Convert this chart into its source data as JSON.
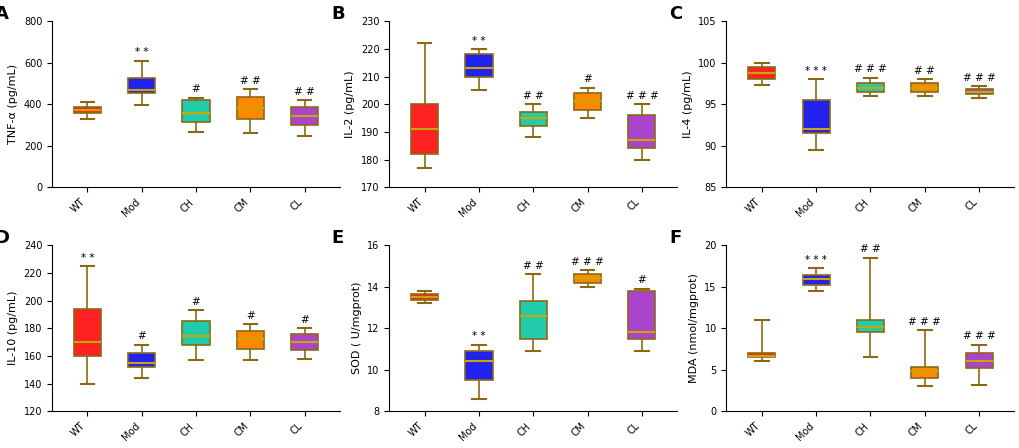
{
  "panels": [
    {
      "label": "A",
      "ylabel": "TNF-α (pg/mL)",
      "ylim": [
        0,
        800
      ],
      "yticks": [
        0,
        200,
        400,
        600,
        800
      ],
      "groups": [
        "WT",
        "Mod",
        "CH",
        "CM",
        "CL"
      ],
      "colors": [
        "#FF2222",
        "#2222EE",
        "#22CCAA",
        "#FF8800",
        "#AA44CC"
      ],
      "boxes": [
        {
          "q1": 358,
          "med": 373,
          "q3": 388,
          "whislo": 330,
          "whishi": 410
        },
        {
          "q1": 453,
          "med": 468,
          "q3": 528,
          "whislo": 398,
          "whishi": 610
        },
        {
          "q1": 312,
          "med": 358,
          "q3": 422,
          "whislo": 268,
          "whishi": 432
        },
        {
          "q1": 328,
          "med": 382,
          "q3": 433,
          "whislo": 262,
          "whishi": 472
        },
        {
          "q1": 298,
          "med": 343,
          "q3": 388,
          "whislo": 248,
          "whishi": 418
        }
      ],
      "annotations": [
        "",
        "* *",
        "#",
        "# #",
        "# #"
      ]
    },
    {
      "label": "B",
      "ylabel": "IL-2 (pg/mL)",
      "ylim": [
        170,
        230
      ],
      "yticks": [
        170,
        180,
        190,
        200,
        210,
        220,
        230
      ],
      "groups": [
        "WT",
        "Mod",
        "CH",
        "CM",
        "CL"
      ],
      "colors": [
        "#FF2222",
        "#2222EE",
        "#22CCAA",
        "#FF8800",
        "#AA44CC"
      ],
      "boxes": [
        {
          "q1": 182,
          "med": 191,
          "q3": 200,
          "whislo": 177,
          "whishi": 222
        },
        {
          "q1": 210,
          "med": 213,
          "q3": 218,
          "whislo": 205,
          "whishi": 220
        },
        {
          "q1": 192,
          "med": 195,
          "q3": 197,
          "whislo": 188,
          "whishi": 200
        },
        {
          "q1": 198,
          "med": 201,
          "q3": 204,
          "whislo": 195,
          "whishi": 206
        },
        {
          "q1": 184,
          "med": 187,
          "q3": 196,
          "whislo": 180,
          "whishi": 200
        }
      ],
      "annotations": [
        "",
        "* *",
        "# #",
        "#",
        "# # #"
      ]
    },
    {
      "label": "C",
      "ylabel": "IL-4 (pg/mL)",
      "ylim": [
        85,
        105
      ],
      "yticks": [
        85,
        90,
        95,
        100,
        105
      ],
      "groups": [
        "WT",
        "Mod",
        "CH",
        "CM",
        "CL"
      ],
      "colors": [
        "#FF2222",
        "#2222EE",
        "#22CCAA",
        "#FF8800",
        "#AA44CC"
      ],
      "boxes": [
        {
          "q1": 98.0,
          "med": 98.8,
          "q3": 99.5,
          "whislo": 97.3,
          "whishi": 100.0
        },
        {
          "q1": 91.5,
          "med": 92.0,
          "q3": 95.5,
          "whislo": 89.5,
          "whishi": 98.0
        },
        {
          "q1": 96.5,
          "med": 97.0,
          "q3": 97.5,
          "whislo": 96.0,
          "whishi": 98.2
        },
        {
          "q1": 96.5,
          "med": 97.0,
          "q3": 97.5,
          "whislo": 96.0,
          "whishi": 98.0
        },
        {
          "q1": 96.2,
          "med": 96.5,
          "q3": 96.8,
          "whislo": 95.8,
          "whishi": 97.2
        }
      ],
      "annotations": [
        "",
        "* * *",
        "# # #",
        "# #",
        "# # #"
      ]
    },
    {
      "label": "D",
      "ylabel": "IL-10 (pg/mL)",
      "ylim": [
        120,
        240
      ],
      "yticks": [
        120,
        140,
        160,
        180,
        200,
        220,
        240
      ],
      "groups": [
        "WT",
        "Mod",
        "CH",
        "CM",
        "CL"
      ],
      "colors": [
        "#FF2222",
        "#2222EE",
        "#22CCAA",
        "#FF8800",
        "#AA44CC"
      ],
      "boxes": [
        {
          "q1": 160,
          "med": 170,
          "q3": 194,
          "whislo": 140,
          "whishi": 225
        },
        {
          "q1": 152,
          "med": 155,
          "q3": 162,
          "whislo": 144,
          "whishi": 168
        },
        {
          "q1": 168,
          "med": 174,
          "q3": 185,
          "whislo": 157,
          "whishi": 193
        },
        {
          "q1": 165,
          "med": 172,
          "q3": 178,
          "whislo": 157,
          "whishi": 183
        },
        {
          "q1": 164,
          "med": 170,
          "q3": 176,
          "whislo": 158,
          "whishi": 180
        }
      ],
      "annotations": [
        "* *",
        "#",
        "#",
        "#",
        "#"
      ]
    },
    {
      "label": "E",
      "ylabel": "SOD ( U/mgprot)",
      "ylim": [
        8,
        16
      ],
      "yticks": [
        8,
        10,
        12,
        14,
        16
      ],
      "groups": [
        "WT",
        "Mod",
        "CH",
        "CM",
        "CL"
      ],
      "colors": [
        "#FF2222",
        "#2222EE",
        "#22CCAA",
        "#FF8800",
        "#AA44CC"
      ],
      "boxes": [
        {
          "q1": 13.35,
          "med": 13.5,
          "q3": 13.65,
          "whislo": 13.2,
          "whishi": 13.8
        },
        {
          "q1": 9.5,
          "med": 10.4,
          "q3": 10.9,
          "whislo": 8.6,
          "whishi": 11.2
        },
        {
          "q1": 11.5,
          "med": 12.6,
          "q3": 13.3,
          "whislo": 10.9,
          "whishi": 14.6
        },
        {
          "q1": 14.2,
          "med": 14.4,
          "q3": 14.6,
          "whislo": 14.0,
          "whishi": 14.8
        },
        {
          "q1": 11.5,
          "med": 11.8,
          "q3": 13.8,
          "whislo": 10.9,
          "whishi": 13.9
        }
      ],
      "annotations": [
        "",
        "* *",
        "# #",
        "# # #",
        "#"
      ]
    },
    {
      "label": "F",
      "ylabel": "MDA (nmol/mgprot)",
      "ylim": [
        0,
        20
      ],
      "yticks": [
        0,
        5,
        10,
        15,
        20
      ],
      "groups": [
        "WT",
        "Mod",
        "CH",
        "CM",
        "CL"
      ],
      "colors": [
        "#FF2222",
        "#2222EE",
        "#22CCAA",
        "#FF8800",
        "#AA44CC"
      ],
      "boxes": [
        {
          "q1": 6.5,
          "med": 6.7,
          "q3": 7.0,
          "whislo": 6.0,
          "whishi": 11.0
        },
        {
          "q1": 15.2,
          "med": 15.9,
          "q3": 16.4,
          "whislo": 14.5,
          "whishi": 17.2
        },
        {
          "q1": 9.5,
          "med": 10.2,
          "q3": 11.0,
          "whislo": 6.5,
          "whishi": 18.5
        },
        {
          "q1": 4.0,
          "med": 4.8,
          "q3": 5.3,
          "whislo": 3.0,
          "whishi": 9.8
        },
        {
          "q1": 5.2,
          "med": 6.0,
          "q3": 7.0,
          "whislo": 3.2,
          "whishi": 8.0
        }
      ],
      "annotations": [
        "",
        "* * *",
        "# #",
        "# # #",
        "# # #"
      ]
    }
  ],
  "box_edge_color": "#8B6914",
  "median_color": "#C8A800",
  "annotation_fontsize": 7.5,
  "ylabel_fontsize": 8,
  "tick_fontsize": 7,
  "panel_label_fontsize": 13,
  "box_width": 0.5,
  "figsize": [
    10.2,
    4.48
  ],
  "dpi": 100
}
